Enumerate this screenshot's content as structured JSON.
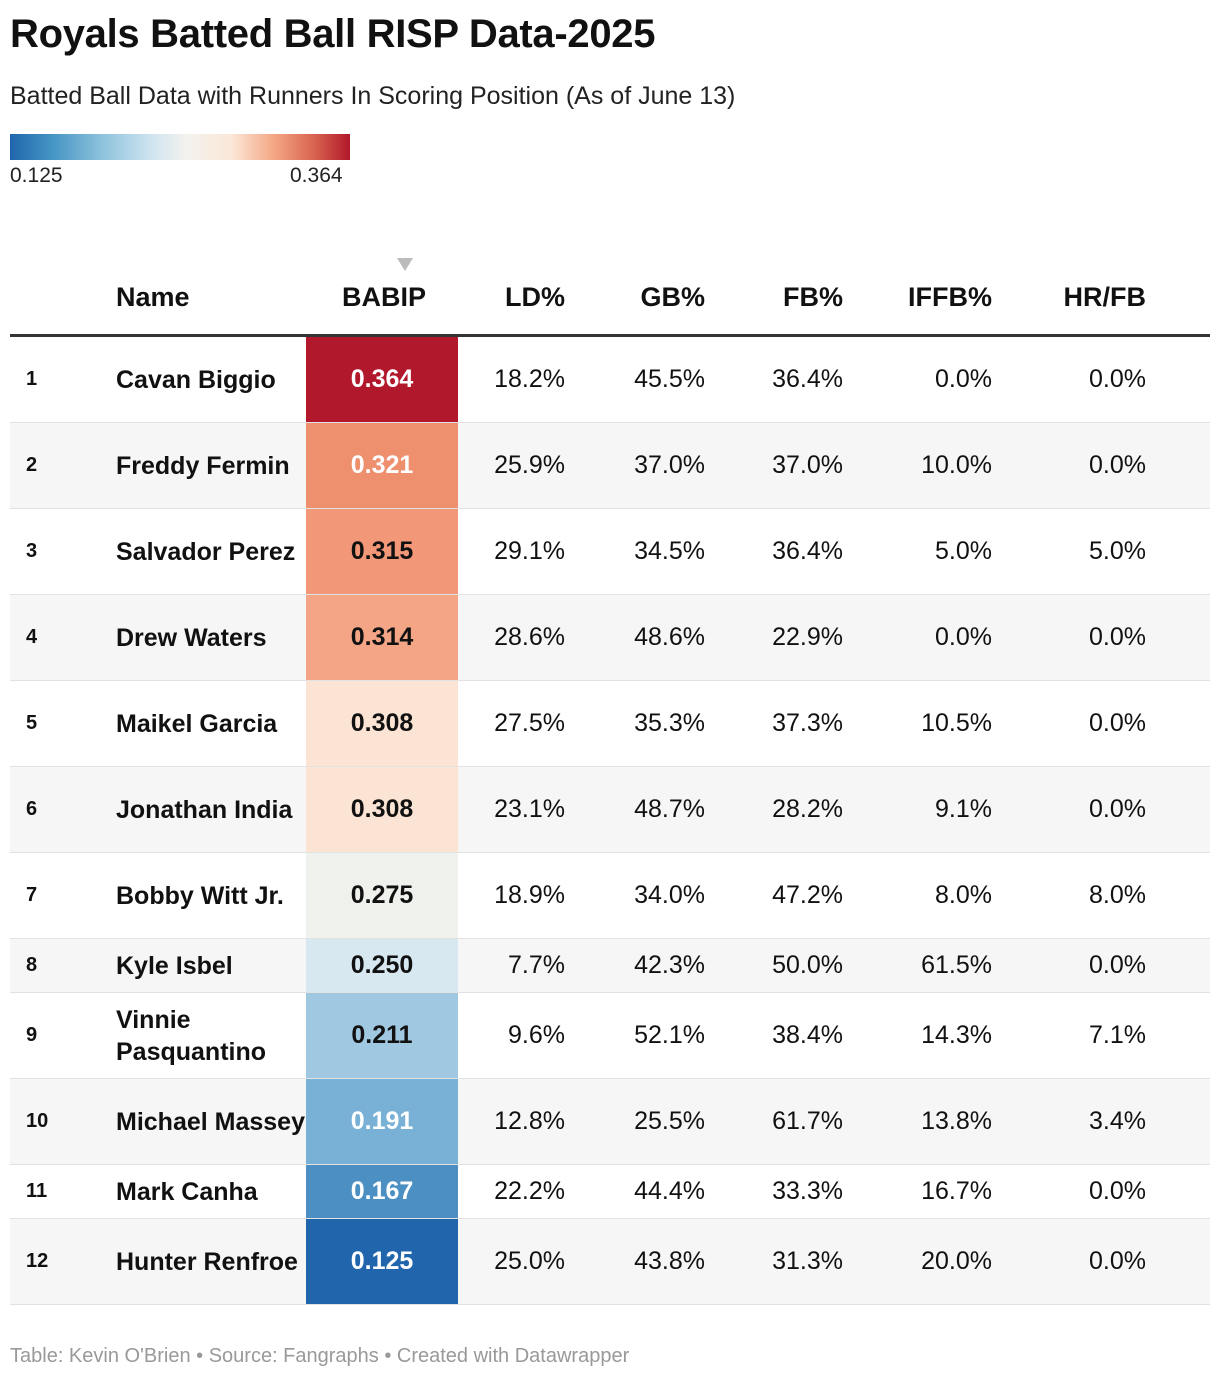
{
  "title": "Royals Batted Ball RISP Data-2025",
  "subtitle": "Batted Ball Data with Runners In Scoring Position (As of June 13)",
  "legend": {
    "min": "0.125",
    "max": "0.364",
    "low_color": "#2166ac",
    "high_color": "#b2182b"
  },
  "footer": "Table: Kevin O'Brien • Source: Fangraphs • Created with Datawrapper",
  "chart_data": {
    "type": "table",
    "title": "Royals Batted Ball RISP Data-2025",
    "sorted_by": "BABIP",
    "sort_order": "descending",
    "columns": [
      "",
      "Name",
      "BABIP",
      "LD%",
      "GB%",
      "FB%",
      "IFFB%",
      "HR/FB"
    ],
    "rows": [
      {
        "rank": "1",
        "name": "Cavan Biggio",
        "babip": "0.364",
        "ld": "18.2%",
        "gb": "45.5%",
        "fb": "36.4%",
        "iffb": "0.0%",
        "hrfb": "0.0%",
        "bg": "#b2182b",
        "fg": "#ffffff"
      },
      {
        "rank": "2",
        "name": "Freddy Fermin",
        "babip": "0.321",
        "ld": "25.9%",
        "gb": "37.0%",
        "fb": "37.0%",
        "iffb": "10.0%",
        "hrfb": "0.0%",
        "bg": "#ee8f6e",
        "fg": "#ffffff"
      },
      {
        "rank": "3",
        "name": "Salvador Perez",
        "babip": "0.315",
        "ld": "29.1%",
        "gb": "34.5%",
        "fb": "36.4%",
        "iffb": "5.0%",
        "hrfb": "5.0%",
        "bg": "#f29878",
        "fg": "#111111"
      },
      {
        "rank": "4",
        "name": "Drew Waters",
        "babip": "0.314",
        "ld": "28.6%",
        "gb": "48.6%",
        "fb": "22.9%",
        "iffb": "0.0%",
        "hrfb": "0.0%",
        "bg": "#f4a586",
        "fg": "#111111"
      },
      {
        "rank": "5",
        "name": "Maikel Garcia",
        "babip": "0.308",
        "ld": "27.5%",
        "gb": "35.3%",
        "fb": "37.3%",
        "iffb": "10.5%",
        "hrfb": "0.0%",
        "bg": "#fbe4d3",
        "fg": "#111111"
      },
      {
        "rank": "6",
        "name": "Jonathan India",
        "babip": "0.308",
        "ld": "23.1%",
        "gb": "48.7%",
        "fb": "28.2%",
        "iffb": "9.1%",
        "hrfb": "0.0%",
        "bg": "#fbe4d3",
        "fg": "#111111"
      },
      {
        "rank": "7",
        "name": "Bobby Witt Jr.",
        "babip": "0.275",
        "ld": "18.9%",
        "gb": "34.0%",
        "fb": "47.2%",
        "iffb": "8.0%",
        "hrfb": "8.0%",
        "bg": "#eef1ec",
        "fg": "#111111"
      },
      {
        "rank": "8",
        "name": "Kyle Isbel",
        "babip": "0.250",
        "ld": "7.7%",
        "gb": "42.3%",
        "fb": "50.0%",
        "iffb": "61.5%",
        "hrfb": "0.0%",
        "bg": "#d7e8f1",
        "fg": "#111111"
      },
      {
        "rank": "9",
        "name": "Vinnie Pasquantino",
        "babip": "0.211",
        "ld": "9.6%",
        "gb": "52.1%",
        "fb": "38.4%",
        "iffb": "14.3%",
        "hrfb": "7.1%",
        "bg": "#a0c8e0",
        "fg": "#111111"
      },
      {
        "rank": "10",
        "name": "Michael Massey",
        "babip": "0.191",
        "ld": "12.8%",
        "gb": "25.5%",
        "fb": "61.7%",
        "iffb": "13.8%",
        "hrfb": "3.4%",
        "bg": "#79b0d5",
        "fg": "#ffffff"
      },
      {
        "rank": "11",
        "name": "Mark Canha",
        "babip": "0.167",
        "ld": "22.2%",
        "gb": "44.4%",
        "fb": "33.3%",
        "iffb": "16.7%",
        "hrfb": "0.0%",
        "bg": "#4c8fc2",
        "fg": "#ffffff"
      },
      {
        "rank": "12",
        "name": "Hunter Renfroe",
        "babip": "0.125",
        "ld": "25.0%",
        "gb": "43.8%",
        "fb": "31.3%",
        "iffb": "20.0%",
        "hrfb": "0.0%",
        "bg": "#2166ac",
        "fg": "#ffffff"
      }
    ]
  }
}
